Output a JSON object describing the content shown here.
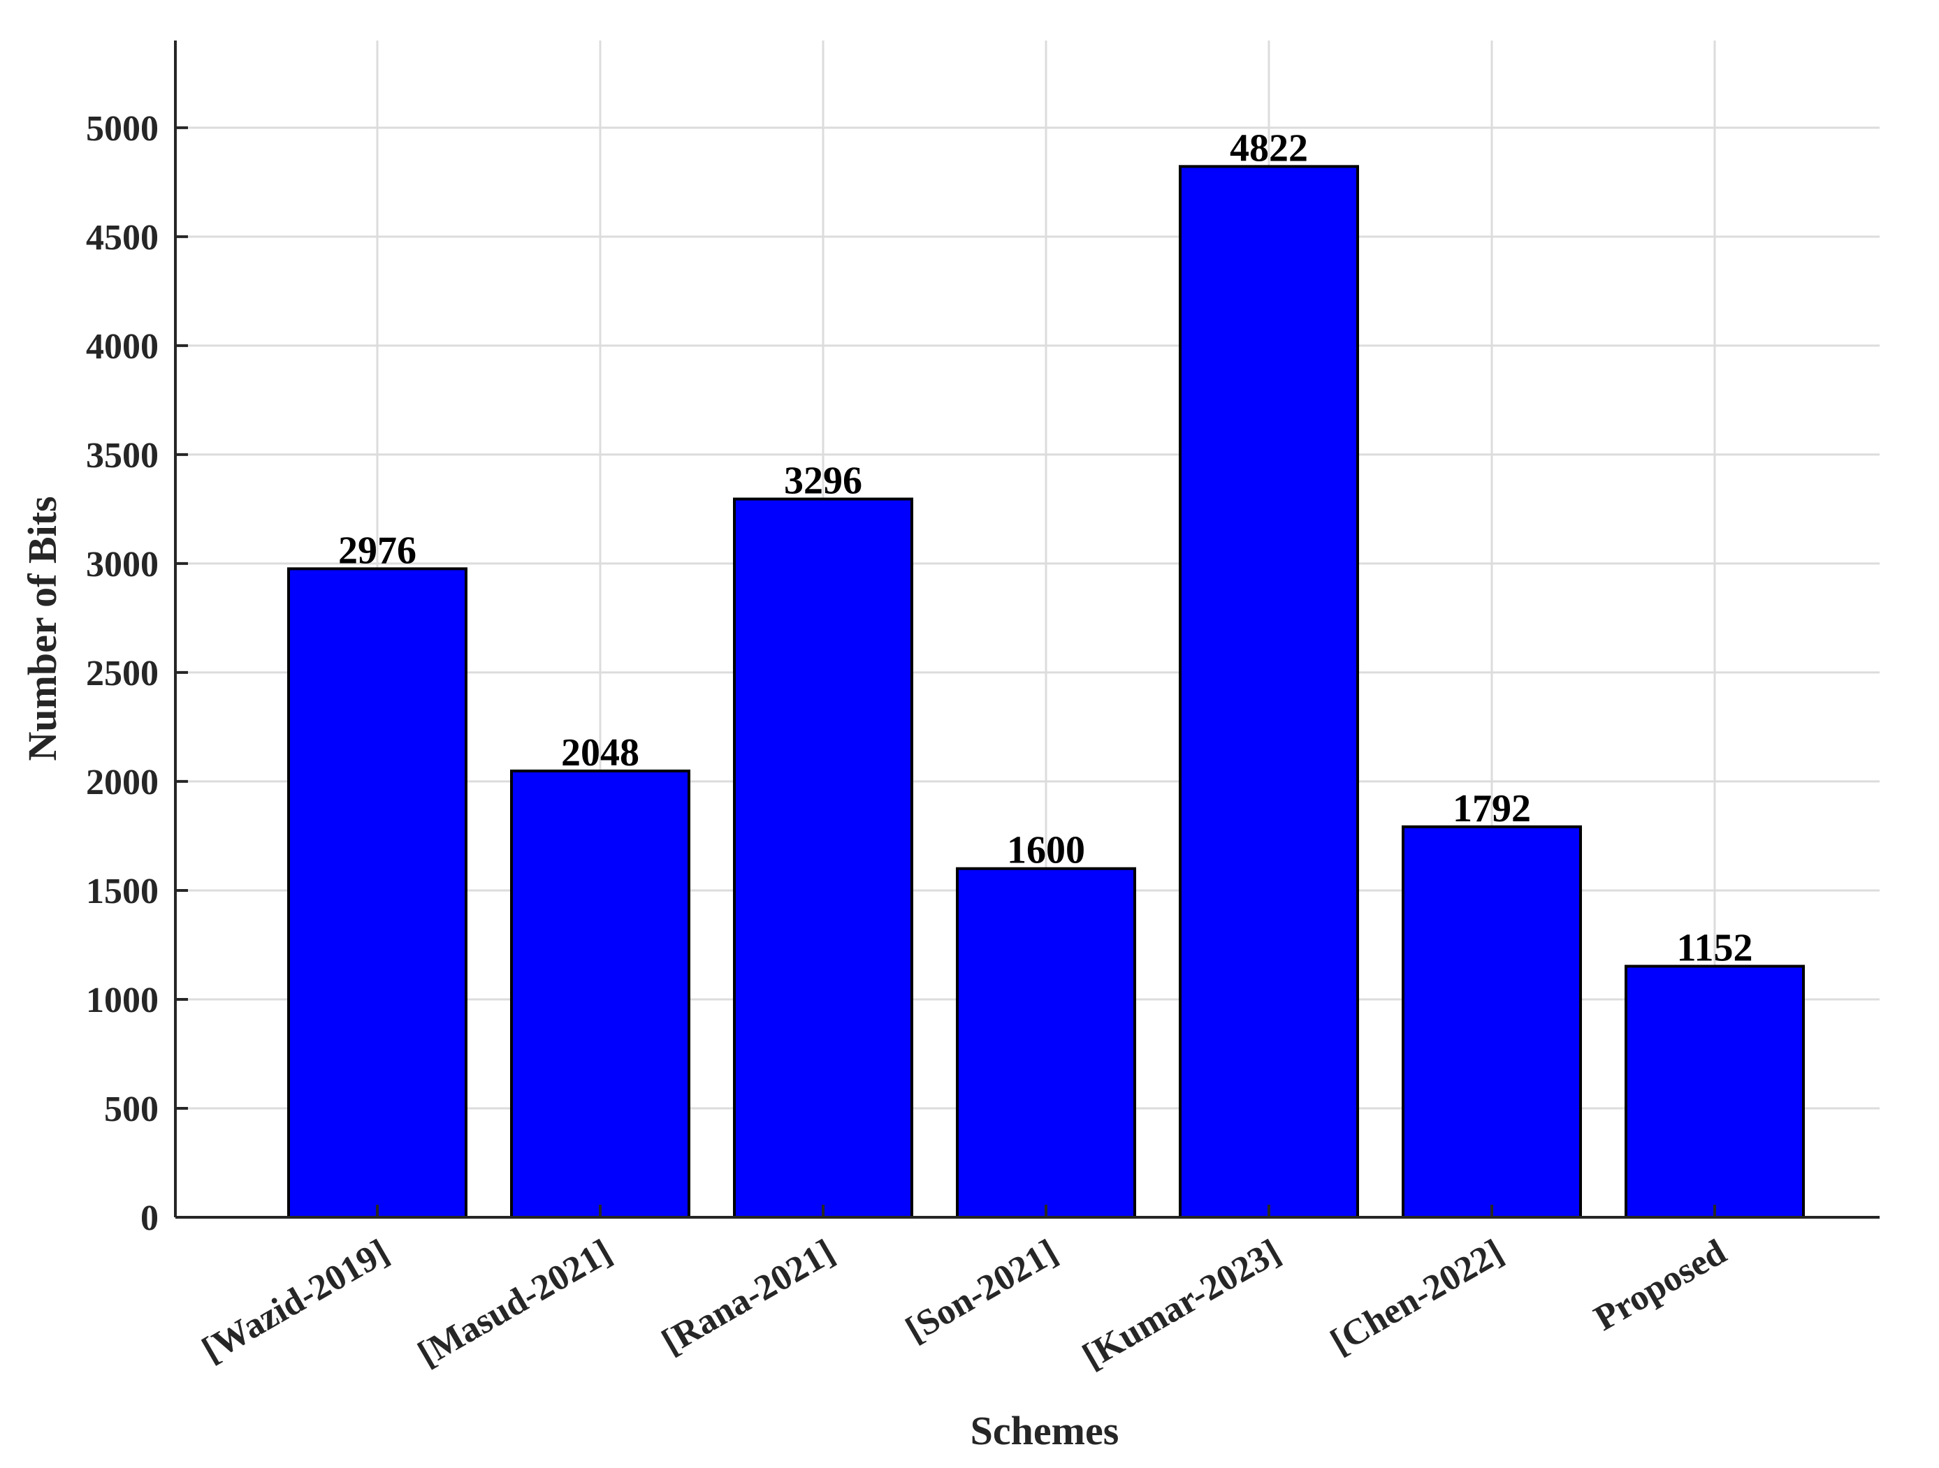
{
  "chart_data": {
    "type": "bar",
    "categories": [
      "[Wazid-2019]",
      "[Masud-2021]",
      "[Rana-2021]",
      "[Son-2021]",
      "[Kumar-2023]",
      "[Chen-2022]",
      "Proposed"
    ],
    "values": [
      2976,
      2048,
      3296,
      1600,
      4822,
      1792,
      1152
    ],
    "data_labels": [
      "2976",
      "2048",
      "3296",
      "1600",
      "4822",
      "1792",
      "1152"
    ],
    "xlabel": "Schemes",
    "ylabel": "Number of Bits",
    "ylim": [
      0,
      5400
    ],
    "yticks": [
      0,
      500,
      1000,
      1500,
      2000,
      2500,
      3000,
      3500,
      4000,
      4500,
      5000
    ],
    "grid": true,
    "bar_color": "#0000ff",
    "bar_edge_color": "#000000"
  }
}
